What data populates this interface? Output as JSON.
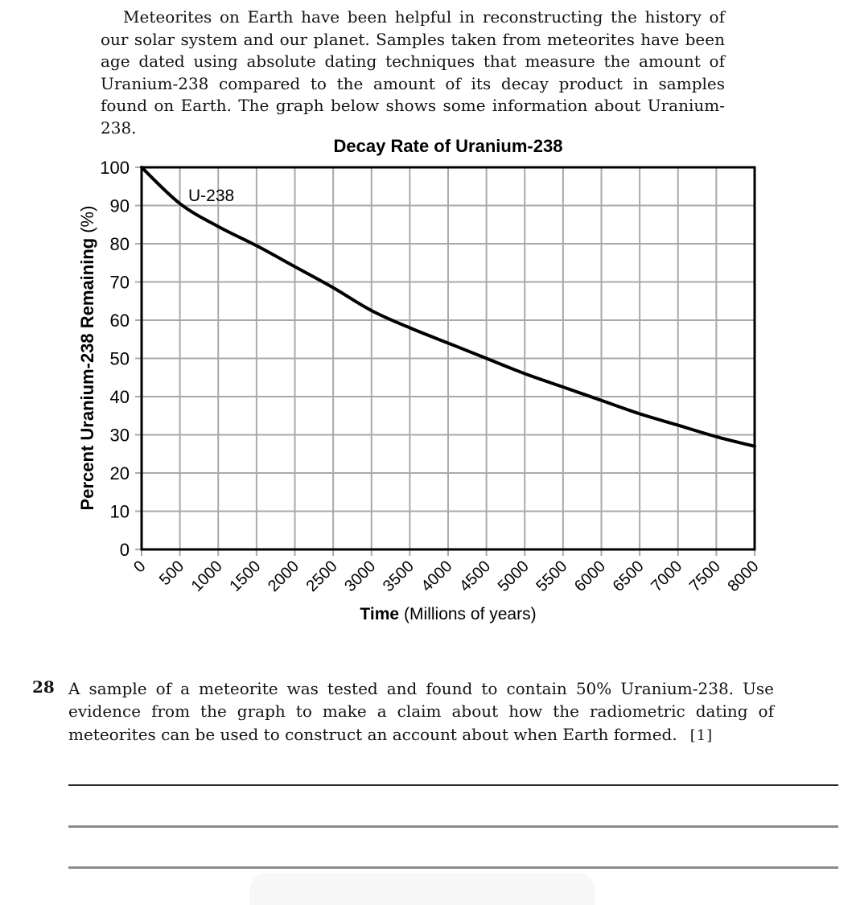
{
  "intro": {
    "text": "Meteorites on Earth have been helpful in reconstructing the history of our solar system and our planet. Samples taken from meteorites have been age dated using absolute dating techniques that measure the amount of Uranium-238 compared to the amount of its decay product in samples found on Earth. The graph below shows some information about Uranium-238."
  },
  "chart": {
    "title": "Decay Rate of Uranium-238",
    "curve_label": "U-238",
    "xlabel_bold": "Time",
    "xlabel_rest": "(Millions of years)",
    "ylabel_bold": "Percent Uranium-238 Remaining",
    "ylabel_rest": "(%)"
  },
  "chart_data": {
    "type": "line",
    "title": "Decay Rate of Uranium-238",
    "xlabel": "Time (Millions of years)",
    "ylabel": "Percent Uranium-238 Remaining (%)",
    "series": [
      {
        "name": "U-238",
        "x": [
          0,
          500,
          1000,
          1500,
          2000,
          2500,
          3000,
          3500,
          4000,
          4500,
          5000,
          5500,
          6000,
          6500,
          7000,
          7500,
          8000
        ],
        "y": [
          100,
          90.5,
          84.5,
          79.5,
          74,
          68.5,
          62.5,
          58,
          54,
          50,
          46,
          42.5,
          39,
          35.5,
          32.5,
          29.5,
          27
        ]
      }
    ],
    "x_ticks": [
      0,
      500,
      1000,
      1500,
      2000,
      2500,
      3000,
      3500,
      4000,
      4500,
      5000,
      5500,
      6000,
      6500,
      7000,
      7500,
      8000
    ],
    "y_ticks": [
      0,
      10,
      20,
      30,
      40,
      50,
      60,
      70,
      80,
      90,
      100
    ],
    "xlim": [
      0,
      8000
    ],
    "ylim": [
      0,
      100
    ],
    "grid": true,
    "legend_position": "annotation-on-curve",
    "annotations": [
      {
        "text": "U-238",
        "x": 620,
        "y": 93
      }
    ]
  },
  "question": {
    "number": "28",
    "text": "A sample of a meteorite was tested and found to contain 50% Uranium-238. Use evidence from the graph to make a claim about how the radiometric dating of meteorites can be used to construct an account about when Earth formed.",
    "marks": "[1]"
  },
  "answer": {
    "line_count": 3
  },
  "colors": {
    "grid": "#a9a9a9",
    "axis_frame": "#000000",
    "curve": "#000000",
    "answer_line_dark": "#2b2b2b",
    "answer_line_gray": "#8a8a8a",
    "bottom_sheet": "#f7f7f7"
  }
}
